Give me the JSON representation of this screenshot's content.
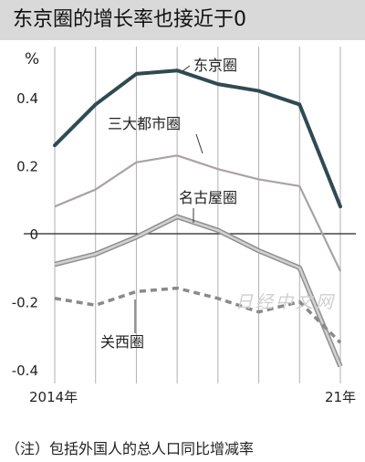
{
  "chart_data": {
    "type": "line",
    "title": "东京圈的增长率也接近于0",
    "ylabel": "%",
    "ylim": [
      -0.44,
      0.55
    ],
    "yticks": [
      0.4,
      0.2,
      0,
      -0.2,
      -0.4
    ],
    "ytick_labels": [
      "0.4",
      "0.2",
      "0",
      "-0.2",
      "-0.4"
    ],
    "x": [
      2014,
      2015,
      2016,
      2017,
      2018,
      2019,
      2020,
      2021
    ],
    "xtick_labels": [
      {
        "x": 2014,
        "label": "2014年"
      },
      {
        "x": 2021,
        "label": "21年"
      }
    ],
    "note": "（注）包括外国人的总人口同比增减率",
    "watermark": "日经中文网",
    "series": [
      {
        "name": "东京圈",
        "color": "#2f4a52",
        "style": "solid-thick",
        "values": [
          0.26,
          0.38,
          0.47,
          0.48,
          0.44,
          0.42,
          0.38,
          0.08
        ]
      },
      {
        "name": "三大都市圈",
        "color": "#aaa3a3",
        "style": "solid",
        "values": [
          0.08,
          0.13,
          0.21,
          0.23,
          0.19,
          0.16,
          0.14,
          -0.11
        ]
      },
      {
        "name": "名古屋圈",
        "color": "#a6a6a6",
        "style": "solid-thick-outlined",
        "values": [
          -0.09,
          -0.06,
          -0.01,
          0.05,
          0.01,
          -0.05,
          -0.1,
          -0.39
        ]
      },
      {
        "name": "关西圈",
        "color": "#8a8a8a",
        "style": "dashed",
        "values": [
          -0.19,
          -0.21,
          -0.17,
          -0.16,
          -0.19,
          -0.23,
          -0.2,
          -0.32
        ]
      }
    ]
  }
}
